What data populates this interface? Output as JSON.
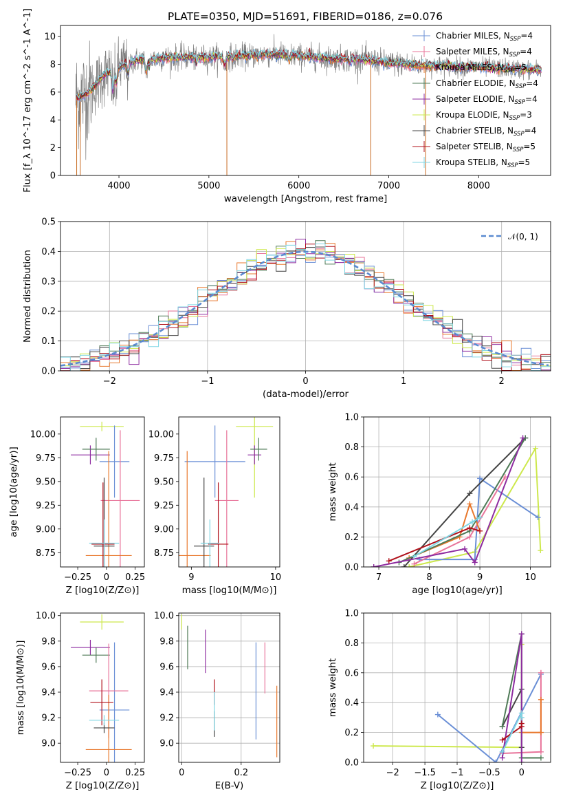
{
  "figure": {
    "title": "PLATE=0350, MJD=51691, FIBERID=0186, z=0.076"
  },
  "legend": {
    "top": [
      {
        "label": "Chabrier MILES, N",
        "sub": "SSP",
        "suffix": "=4",
        "color": "#6a8fd6"
      },
      {
        "label": "Salpeter MILES, N",
        "sub": "SSP",
        "suffix": "=4",
        "color": "#e8749a"
      },
      {
        "label": "Kroupa MILES, N",
        "sub": "SSP",
        "suffix": "=5",
        "color": "#e8782d"
      },
      {
        "label": "Chabrier ELODIE, N",
        "sub": "SSP",
        "suffix": "=4",
        "color": "#4e7a56"
      },
      {
        "label": "Salpeter ELODIE, N",
        "sub": "SSP",
        "suffix": "=4",
        "color": "#8e2ca0"
      },
      {
        "label": "Kroupa ELODIE, N",
        "sub": "SSP",
        "suffix": "=3",
        "color": "#cde84c"
      },
      {
        "label": "Chabrier STELIB, N",
        "sub": "SSP",
        "suffix": "=4",
        "color": "#444444"
      },
      {
        "label": "Salpeter STELIB, N",
        "sub": "SSP",
        "suffix": "=5",
        "color": "#b0101a"
      },
      {
        "label": "Kroupa STELIB, N",
        "sub": "SSP",
        "suffix": "=5",
        "color": "#7fd6e3"
      }
    ],
    "hist": {
      "label": "𝒩(0, 1)",
      "color": "#5a8ad0"
    }
  },
  "chart_data": [
    {
      "type": "line",
      "xlabel": "wavelength [Angstrom, rest frame]",
      "ylabel": "Flux [f_λ 10^-17 erg cm^-2 s^-1 A^-1]",
      "xlim": [
        3350,
        8800
      ],
      "ylim": [
        0,
        10.8
      ],
      "xticks": [
        4000,
        5000,
        6000,
        7000,
        8000
      ],
      "yticks": [
        0,
        2,
        4,
        6,
        8,
        10
      ],
      "data_color": "#808080",
      "model_colors": [
        "#6a8fd6",
        "#e8749a",
        "#e8782d",
        "#4e7a56",
        "#8e2ca0",
        "#cde84c",
        "#444444",
        "#b0101a",
        "#7fd6e3"
      ],
      "continuum": {
        "x": [
          3550,
          3650,
          3750,
          3850,
          3950,
          4050,
          4200,
          4400,
          4600,
          4800,
          5000,
          5200,
          5400,
          5600,
          5800,
          6000,
          6200,
          6400,
          6600,
          6800,
          7000,
          7200,
          7400,
          7600,
          7800,
          8000,
          8300,
          8600
        ],
        "y": [
          5.6,
          5.9,
          6.6,
          7.3,
          7.6,
          7.9,
          8.3,
          8.4,
          8.5,
          8.5,
          8.5,
          8.6,
          8.6,
          8.7,
          8.7,
          8.6,
          8.5,
          8.4,
          8.4,
          8.3,
          8.1,
          8.0,
          7.9,
          7.9,
          7.8,
          7.8,
          7.7,
          7.6
        ]
      },
      "spikes": [
        {
          "x": 3530,
          "y": 0
        },
        {
          "x": 3570,
          "y": 0
        },
        {
          "x": 5200,
          "y": 0
        },
        {
          "x": 6800,
          "y": 0
        },
        {
          "x": 7410,
          "y": 0
        }
      ]
    },
    {
      "type": "histogram",
      "xlabel": "(data-model)/error",
      "ylabel": "Normed distribution",
      "xlim": [
        -2.5,
        2.5
      ],
      "ylim": [
        0,
        0.5
      ],
      "xticks": [
        -2,
        -1,
        0,
        1,
        2
      ],
      "yticks": [
        0.0,
        0.1,
        0.2,
        0.3,
        0.4,
        0.5
      ],
      "grid": true,
      "legend_position": "upper right",
      "bin_width": 0.1,
      "gaussian": {
        "mean": 0,
        "sigma": 1
      }
    },
    {
      "type": "scatter",
      "xlabel": "Z [log10(Z/Z⊙)]",
      "ylabel": "age  [log10(age/yr)]",
      "xlim": [
        -0.4,
        0.33
      ],
      "ylim": [
        8.6,
        10.18
      ],
      "xticks": [
        -0.25,
        0.0,
        0.25
      ],
      "yticks": [
        8.75,
        9.0,
        9.25,
        9.5,
        9.75,
        10.0
      ],
      "points": [
        {
          "color": "#cde84c",
          "x": -0.04,
          "y": 10.08,
          "xerr": 0.19,
          "yerr": 0.05
        },
        {
          "color": "#8e2ca0",
          "x": -0.14,
          "y": 9.78,
          "xerr": 0.17,
          "yerr": 0.1
        },
        {
          "color": "#4e7a56",
          "x": -0.09,
          "y": 9.84,
          "xerr": 0.12,
          "yerr": 0.12
        },
        {
          "color": "#6a8fd6",
          "x": 0.07,
          "y": 9.71,
          "xerr": 0.13,
          "yerr": 0.38
        },
        {
          "color": "#e8749a",
          "x": 0.12,
          "y": 9.3,
          "xerr": 0.17,
          "yerr": 0.74
        },
        {
          "color": "#e8782d",
          "x": 0.02,
          "y": 8.72,
          "xerr": 0.2,
          "yerr": 1.1
        },
        {
          "color": "#444444",
          "x": -0.02,
          "y": 8.82,
          "xerr": 0.09,
          "yerr": 0.72
        },
        {
          "color": "#b0101a",
          "x": -0.03,
          "y": 8.84,
          "xerr": 0.1,
          "yerr": 0.65
        },
        {
          "color": "#7fd6e3",
          "x": -0.02,
          "y": 8.85,
          "xerr": 0.13,
          "yerr": 0.25
        }
      ]
    },
    {
      "type": "scatter",
      "xlabel": "mass [log10(M/M⊙)]",
      "ylabel": "",
      "xlim": [
        8.85,
        10.05
      ],
      "ylim": [
        8.6,
        10.18
      ],
      "xticks": [
        9,
        10
      ],
      "yticks": [
        8.75,
        9.0,
        9.25,
        9.5,
        9.75,
        10.0
      ],
      "points": [
        {
          "color": "#cde84c",
          "x": 9.75,
          "y": 10.08,
          "xerr": 0.22,
          "yerr": 0.75
        },
        {
          "color": "#8e2ca0",
          "x": 9.75,
          "y": 9.78,
          "xerr": 0.08,
          "yerr": 0.1
        },
        {
          "color": "#4e7a56",
          "x": 9.8,
          "y": 9.84,
          "xerr": 0.1,
          "yerr": 0.12
        },
        {
          "color": "#6a8fd6",
          "x": 9.28,
          "y": 9.71,
          "xerr": 0.36,
          "yerr": 0.38
        },
        {
          "color": "#e8749a",
          "x": 9.42,
          "y": 9.3,
          "xerr": 0.14,
          "yerr": 0.74
        },
        {
          "color": "#e8782d",
          "x": 8.95,
          "y": 8.72,
          "xerr": 0.28,
          "yerr": 1.1
        },
        {
          "color": "#444444",
          "x": 9.15,
          "y": 8.82,
          "xerr": 0.12,
          "yerr": 0.72
        },
        {
          "color": "#b0101a",
          "x": 9.32,
          "y": 8.84,
          "xerr": 0.12,
          "yerr": 0.65
        },
        {
          "color": "#7fd6e3",
          "x": 9.22,
          "y": 8.85,
          "xerr": 0.11,
          "yerr": 0.25
        }
      ]
    },
    {
      "type": "line",
      "xlabel": "age  [log10(age/yr)]",
      "ylabel": "mass weight",
      "xlim": [
        6.7,
        10.4
      ],
      "ylim": [
        0,
        1.0
      ],
      "xticks": [
        7,
        8,
        9,
        10
      ],
      "yticks": [
        0.0,
        0.2,
        0.4,
        0.6,
        0.8,
        1.0
      ],
      "grid": true,
      "series": [
        {
          "color": "#cde84c",
          "x": [
            7.6,
            8.9,
            10.1,
            10.2
          ],
          "y": [
            0.0,
            0.1,
            0.79,
            0.11
          ]
        },
        {
          "color": "#6a8fd6",
          "x": [
            7.8,
            8.9,
            9.0,
            10.15
          ],
          "y": [
            0.05,
            0.05,
            0.59,
            0.33
          ]
        },
        {
          "color": "#e8749a",
          "x": [
            7.7,
            8.8,
            9.5
          ],
          "y": [
            0.02,
            0.2,
            0.6
          ]
        },
        {
          "color": "#e8782d",
          "x": [
            7.6,
            8.6,
            8.8,
            9.0
          ],
          "y": [
            0.06,
            0.2,
            0.42,
            0.24
          ]
        },
        {
          "color": "#444444",
          "x": [
            7.5,
            8.8,
            9.9
          ],
          "y": [
            0.0,
            0.49,
            0.86
          ]
        },
        {
          "color": "#4e7a56",
          "x": [
            7.4,
            8.8,
            9.9
          ],
          "y": [
            0.03,
            0.24,
            0.86
          ]
        },
        {
          "color": "#8e2ca0",
          "x": [
            6.9,
            8.7,
            8.9,
            9.85
          ],
          "y": [
            0.0,
            0.12,
            0.03,
            0.86
          ]
        },
        {
          "color": "#b0101a",
          "x": [
            7.2,
            8.8,
            9.0
          ],
          "y": [
            0.04,
            0.26,
            0.24
          ]
        },
        {
          "color": "#7fd6e3",
          "x": [
            7.7,
            8.85,
            9.0
          ],
          "y": [
            0.07,
            0.3,
            0.33
          ]
        }
      ]
    },
    {
      "type": "scatter",
      "xlabel": "Z [log10(Z/Z⊙)]",
      "ylabel": "mass [log10(M/M⊙)]",
      "xlim": [
        -0.4,
        0.33
      ],
      "ylim": [
        8.85,
        10.02
      ],
      "xticks": [
        -0.25,
        0.0,
        0.25
      ],
      "yticks": [
        9.0,
        9.2,
        9.4,
        9.6,
        9.8,
        10.0
      ],
      "points": [
        {
          "color": "#cde84c",
          "x": -0.04,
          "y": 9.95,
          "xerr": 0.19,
          "yerr": 0.06
        },
        {
          "color": "#8e2ca0",
          "x": -0.14,
          "y": 9.75,
          "xerr": 0.17,
          "yerr": 0.06
        },
        {
          "color": "#4e7a56",
          "x": -0.09,
          "y": 9.69,
          "xerr": 0.12,
          "yerr": 0.06
        },
        {
          "color": "#6a8fd6",
          "x": 0.07,
          "y": 9.26,
          "xerr": 0.13,
          "yerr": 0.53
        },
        {
          "color": "#e8749a",
          "x": 0.02,
          "y": 9.41,
          "xerr": 0.17,
          "yerr": 0.37
        },
        {
          "color": "#e8782d",
          "x": 0.02,
          "y": 8.95,
          "xerr": 0.2,
          "yerr": 0.43
        },
        {
          "color": "#444444",
          "x": -0.02,
          "y": 9.12,
          "xerr": 0.09,
          "yerr": 0.04
        },
        {
          "color": "#b0101a",
          "x": -0.04,
          "y": 9.32,
          "xerr": 0.1,
          "yerr": 0.18
        },
        {
          "color": "#7fd6e3",
          "x": -0.02,
          "y": 9.18,
          "xerr": 0.13,
          "yerr": 0.04
        }
      ]
    },
    {
      "type": "scatter",
      "xlabel": "E(B-V)",
      "ylabel": "",
      "xlim": [
        -0.01,
        0.33
      ],
      "ylim": [
        8.85,
        10.02
      ],
      "xticks": [
        0.0,
        0.2
      ],
      "yticks": [
        9.0,
        9.2,
        9.4,
        9.6,
        9.8,
        10.0
      ],
      "grid": true,
      "points": [
        {
          "color": "#cde84c",
          "x": 0.0,
          "y": 9.95,
          "xerr": 0.0,
          "yerr": 0.06
        },
        {
          "color": "#4e7a56",
          "x": 0.02,
          "y": 9.75,
          "xerr": 0.0,
          "yerr": 0.17
        },
        {
          "color": "#8e2ca0",
          "x": 0.08,
          "y": 9.72,
          "xerr": 0.0,
          "yerr": 0.17
        },
        {
          "color": "#b0101a",
          "x": 0.11,
          "y": 9.4,
          "xerr": 0.0,
          "yerr": 0.1
        },
        {
          "color": "#444444",
          "x": 0.11,
          "y": 9.15,
          "xerr": 0.0,
          "yerr": 0.1
        },
        {
          "color": "#7fd6e3",
          "x": 0.11,
          "y": 9.25,
          "xerr": 0.0,
          "yerr": 0.15
        },
        {
          "color": "#6a8fd6",
          "x": 0.25,
          "y": 9.41,
          "xerr": 0.0,
          "yerr": 0.38
        },
        {
          "color": "#e8749a",
          "x": 0.28,
          "y": 9.59,
          "xerr": 0.0,
          "yerr": 0.2
        },
        {
          "color": "#e8782d",
          "x": 0.32,
          "y": 9.17,
          "xerr": 0.0,
          "yerr": 0.28
        }
      ]
    },
    {
      "type": "line",
      "xlabel": "Z [log10(Z/Z⊙)]",
      "ylabel": "mass weight",
      "xlim": [
        -2.45,
        0.45
      ],
      "ylim": [
        0,
        1.0
      ],
      "xticks": [
        -2.0,
        -1.5,
        -1.0,
        -0.5,
        0.0
      ],
      "yticks": [
        0.0,
        0.2,
        0.4,
        0.6,
        0.8,
        1.0
      ],
      "grid": true,
      "series": [
        {
          "color": "#cde84c",
          "x": [
            -2.3,
            0.0,
            0.0
          ],
          "y": [
            0.11,
            0.1,
            0.79
          ]
        },
        {
          "color": "#6a8fd6",
          "x": [
            -1.3,
            -0.4,
            0.3
          ],
          "y": [
            0.32,
            0.0,
            0.59
          ]
        },
        {
          "color": "#e8749a",
          "x": [
            -0.3,
            0.3,
            0.3
          ],
          "y": [
            0.06,
            0.07,
            0.6
          ]
        },
        {
          "color": "#e8782d",
          "x": [
            0.3,
            0.3,
            0.0
          ],
          "y": [
            0.42,
            0.2,
            0.2
          ]
        },
        {
          "color": "#444444",
          "x": [
            -0.3,
            0.0,
            0.0
          ],
          "y": [
            0.24,
            0.49,
            0.1
          ]
        },
        {
          "color": "#4e7a56",
          "x": [
            -0.3,
            0.0,
            0.0,
            0.3
          ],
          "y": [
            0.24,
            0.86,
            0.03,
            0.03
          ]
        },
        {
          "color": "#8e2ca0",
          "x": [
            -0.3,
            0.0,
            0.0
          ],
          "y": [
            0.03,
            0.86,
            0.0
          ]
        },
        {
          "color": "#b0101a",
          "x": [
            -0.3,
            0.0,
            0.0
          ],
          "y": [
            0.15,
            0.24,
            0.26
          ]
        },
        {
          "color": "#7fd6e3",
          "x": [
            -0.3,
            0.0,
            0.0
          ],
          "y": [
            0.07,
            0.33,
            0.3
          ]
        }
      ]
    }
  ]
}
